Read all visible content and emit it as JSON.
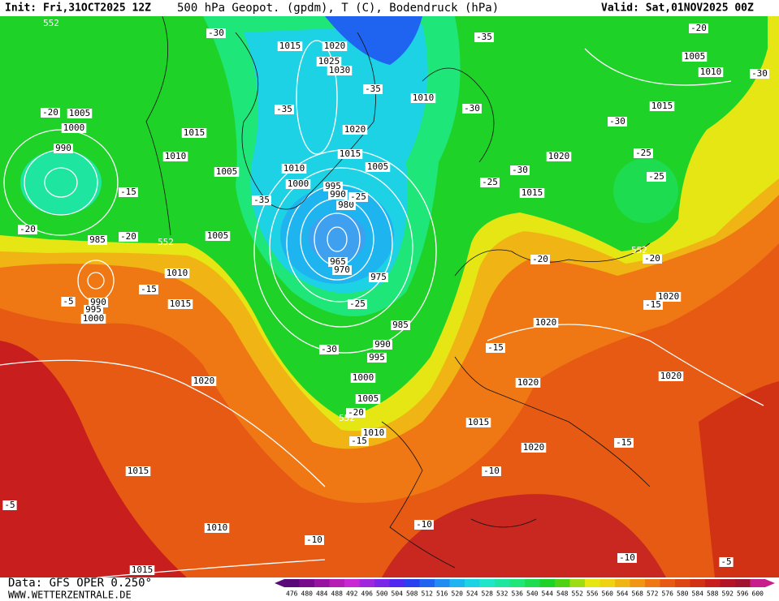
{
  "header": {
    "init": "Init: Fri,31OCT2025 12Z",
    "title": "500 hPa Geopot. (gpdm), T (C), Bodendruck (hPa)",
    "valid": "Valid: Sat,01NOV2025 00Z"
  },
  "footer": {
    "data": "Data: GFS OPER 0.250°",
    "site": "WWW.WETTERZENTRALE.DE"
  },
  "colorbar": {
    "ticks": [
      476,
      480,
      484,
      488,
      492,
      496,
      500,
      504,
      508,
      512,
      516,
      520,
      524,
      528,
      532,
      536,
      540,
      544,
      548,
      552,
      556,
      560,
      564,
      568,
      572,
      576,
      580,
      584,
      588,
      592,
      596,
      600
    ],
    "colors": [
      "#5a0a78",
      "#780a8c",
      "#9614a0",
      "#b41eb4",
      "#c828d2",
      "#a028dc",
      "#7828e6",
      "#5028f0",
      "#2840f0",
      "#1e64f0",
      "#1e8cf0",
      "#1eb4f0",
      "#1ed2e6",
      "#1ee6c8",
      "#1ee6a0",
      "#1ee678",
      "#1edc50",
      "#1ed228",
      "#50d214",
      "#a0dc14",
      "#e6e614",
      "#f0d214",
      "#f0b414",
      "#f09614",
      "#f07814",
      "#e65a14",
      "#dc4614",
      "#d23214",
      "#c81e1e",
      "#b41428",
      "#a01432",
      "#c81e8c"
    ]
  },
  "map": {
    "pressure_labels": [
      1020,
      1015,
      1025,
      1030,
      1010,
      1020,
      1015,
      1015,
      1010,
      1005,
      1010,
      1005,
      1000,
      995,
      990,
      980,
      1005,
      1000,
      990,
      985,
      1005,
      1010,
      965,
      970,
      975,
      990,
      995,
      1000,
      1015,
      985,
      990,
      995,
      1000,
      1005,
      1010,
      1015,
      1020,
      1020,
      1020,
      1020,
      1020,
      1020,
      1015,
      1010,
      1015,
      1005,
      1010,
      1015,
      1020,
      1015
    ],
    "temperature_labels": [
      -30,
      -35,
      -20,
      -30,
      -35,
      -35,
      -30,
      -30,
      -25,
      -25,
      -30,
      -25,
      -20,
      -15,
      -20,
      -20,
      -35,
      -25,
      -25,
      -30,
      -15,
      -5,
      -20,
      -20,
      -15,
      -15,
      -20,
      -15,
      -15,
      -10,
      -10,
      -10,
      -10,
      -5,
      -5
    ],
    "height_labels": [
      552,
      552,
      552,
      552
    ]
  }
}
